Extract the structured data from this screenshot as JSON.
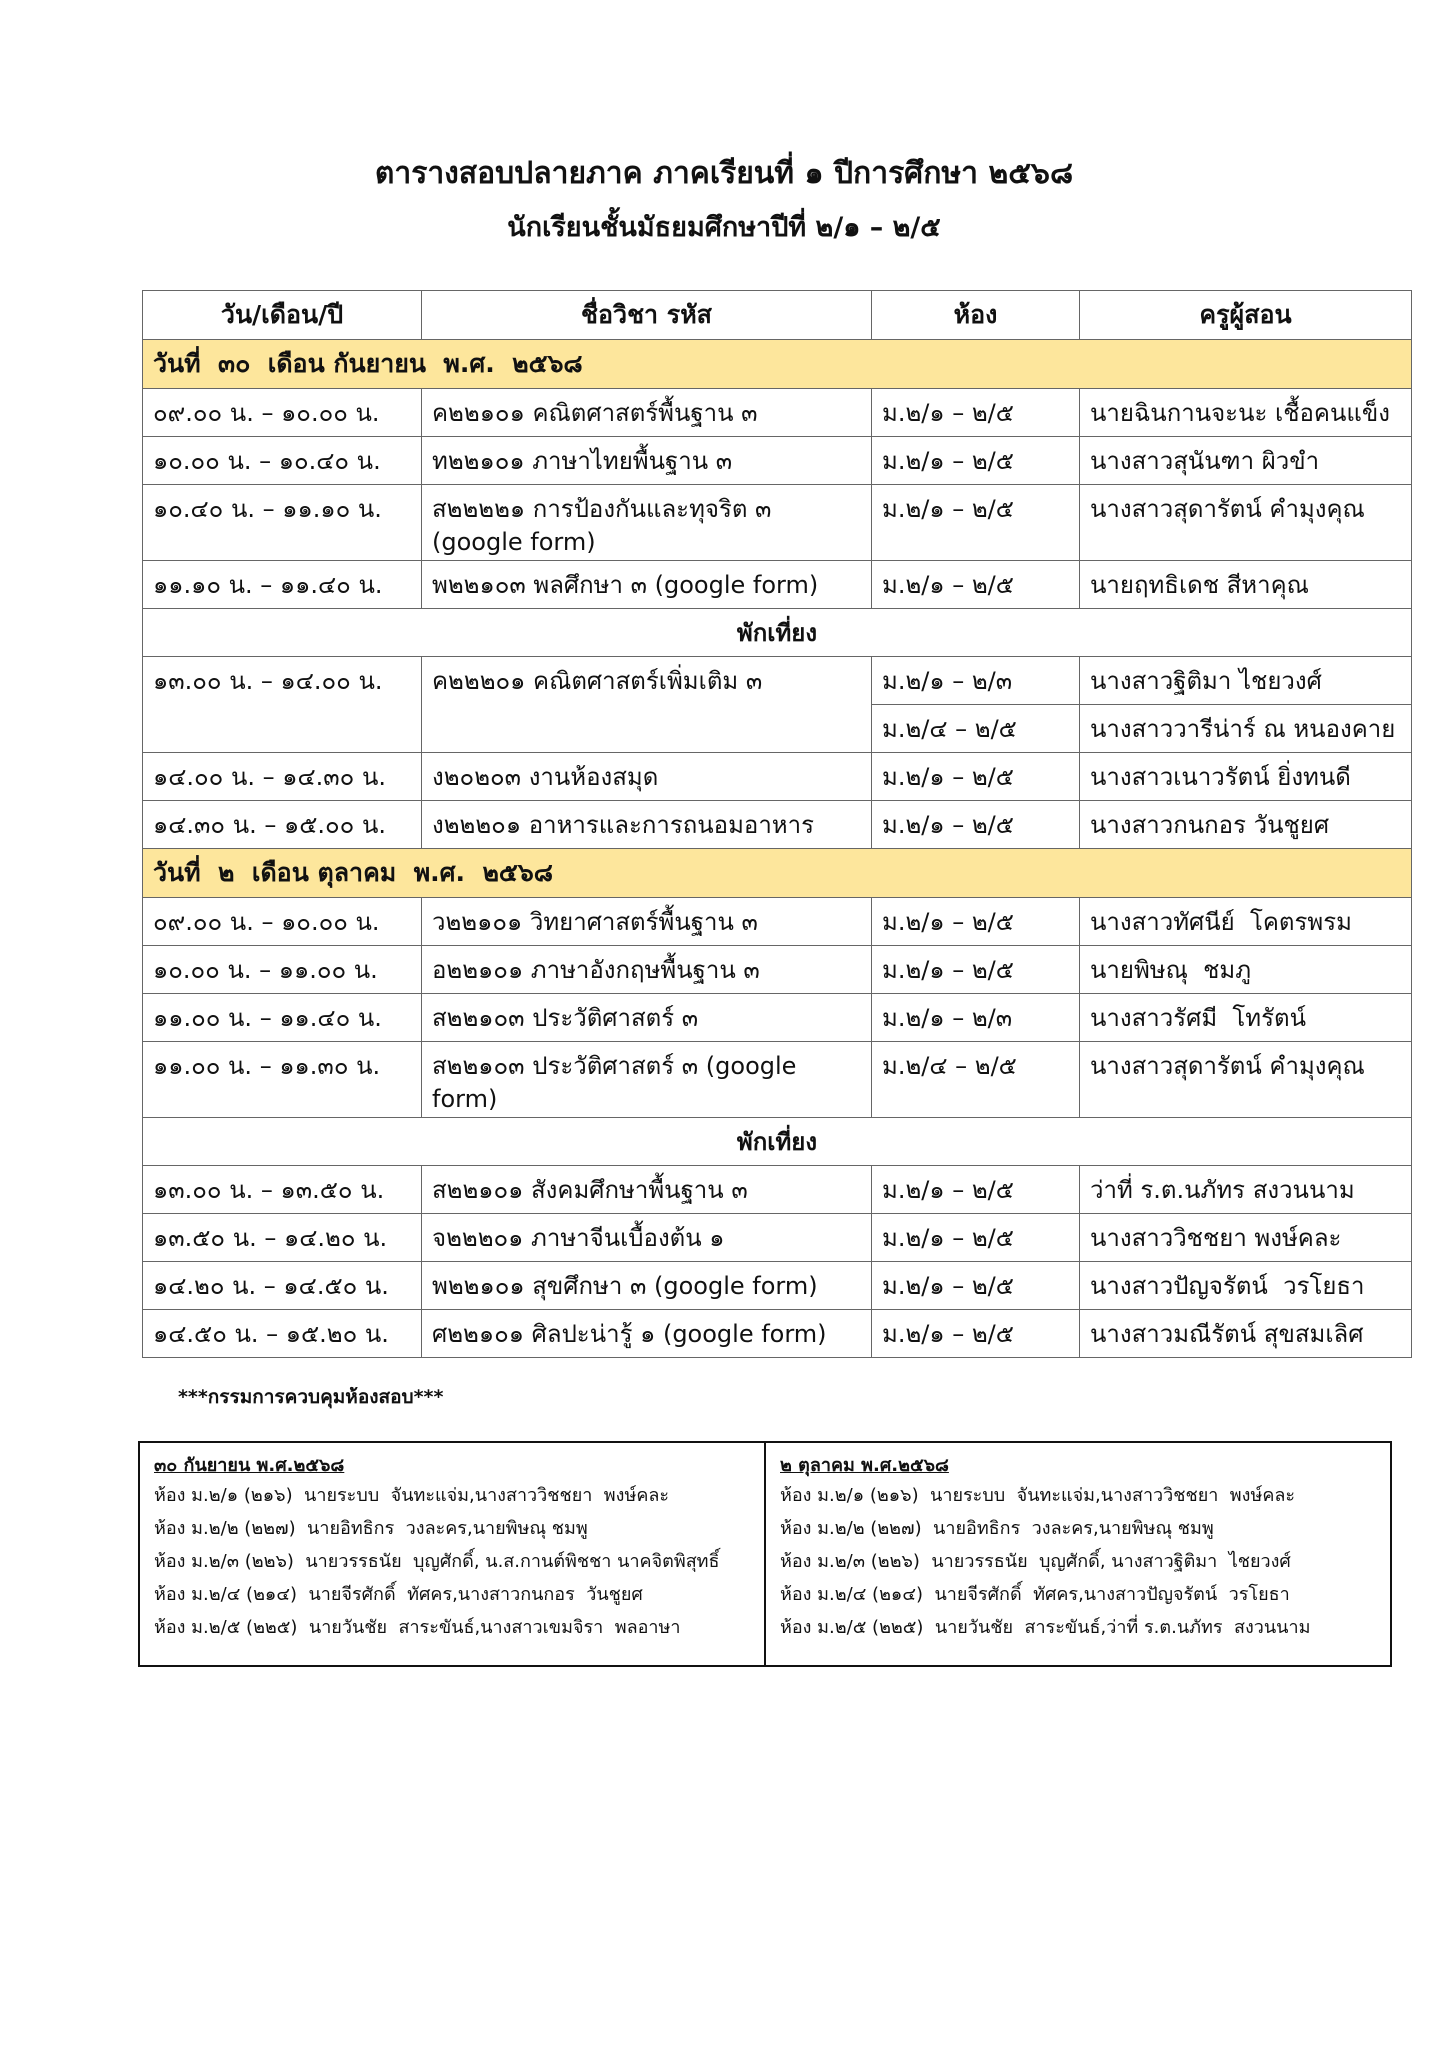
{
  "header": {
    "title": "ตารางสอบปลายภาค ภาคเรียนที่  ๑  ปีการศึกษา  ๒๕๖๘",
    "subtitle": "นักเรียนชั้นมัธยมศึกษาปีที่ ๒/๑ – ๒/๕"
  },
  "table": {
    "headers": [
      "วัน/เดือน/ปี",
      "ชื่อวิชา รหัส",
      "ห้อง",
      "ครูผู้สอน"
    ],
    "sections": [
      {
        "heading": "วันที่  ๓๐  เดือน กันยายน  พ.ศ.  ๒๕๖๘",
        "rows": [
          {
            "time": "๐๙.๐๐ น. – ๑๐.๐๐ น.",
            "subject": "ค๒๒๑๐๑ คณิตศาสตร์พื้นฐาน ๓",
            "room": "ม.๒/๑ – ๒/๕",
            "teacher": "นายฉินกานจะนะ เชื้อคนแข็ง"
          },
          {
            "time": "๑๐.๐๐ น. – ๑๐.๔๐ น.",
            "subject": "ท๒๒๑๐๑ ภาษาไทยพื้นฐาน ๓",
            "room": "ม.๒/๑ – ๒/๕",
            "teacher": "นางสาวสุนันฑา ผิวขำ"
          },
          {
            "time": "๑๐.๔๐ น. – ๑๑.๑๐ น.",
            "subject": "ส๒๒๒๒๑ การป้องกันและทุจริต ๓ (google form)",
            "room": "ม.๒/๑ – ๒/๕",
            "teacher": "นางสาวสุดารัตน์ คำมุงคุณ"
          },
          {
            "time": "๑๑.๑๐ น. – ๑๑.๔๐ น.",
            "subject": "พ๒๒๑๐๓ พลศึกษา ๓ (google form)",
            "room": "ม.๒/๑ – ๒/๕",
            "teacher": "นายฤทธิเดช สีหาคุณ"
          },
          {
            "break": "พักเที่ยง"
          },
          {
            "time": "๑๓.๐๐ น. – ๑๔.๐๐ น.",
            "subject": "ค๒๒๒๐๑ คณิตศาสตร์เพิ่มเติม ๓",
            "room": [
              "ม.๒/๑ – ๒/๓",
              "ม.๒/๔ – ๒/๕"
            ],
            "teacher": [
              "นางสาวฐิติมา ไชยวงศ์",
              "นางสาววารีน่าร์ ณ หนองคาย"
            ]
          },
          {
            "time": "๑๔.๐๐ น. – ๑๔.๓๐ น.",
            "subject": "ง๒๐๒๐๓ งานห้องสมุด",
            "room": "ม.๒/๑ – ๒/๕",
            "teacher": "นางสาวเนาวรัตน์ ยิ่งทนดี"
          },
          {
            "time": "๑๔.๓๐ น. – ๑๕.๐๐ น.",
            "subject": "ง๒๒๒๐๑ อาหารและการถนอมอาหาร",
            "room": "ม.๒/๑ – ๒/๕",
            "teacher": "นางสาวกนกอร วันชูยศ"
          }
        ]
      },
      {
        "heading": "วันที่  ๒  เดือน ตุลาคม  พ.ศ.  ๒๕๖๘",
        "rows": [
          {
            "time": "๐๙.๐๐ น. – ๑๐.๐๐ น.",
            "subject": "ว๒๒๑๐๑ วิทยาศาสตร์พื้นฐาน ๓",
            "room": "ม.๒/๑ – ๒/๕",
            "teacher": "นางสาวทัศนีย์  โคตรพรม"
          },
          {
            "time": "๑๐.๐๐ น. – ๑๑.๐๐ น.",
            "subject": "อ๒๒๑๐๑ ภาษาอังกฤษพื้นฐาน ๓",
            "room": "ม.๒/๑ – ๒/๕",
            "teacher": "นายพิษณุ  ชมภู"
          },
          {
            "time": "๑๑.๐๐ น. – ๑๑.๔๐ น.",
            "subject": "ส๒๒๑๐๓ ประวัติศาสตร์ ๓",
            "room": "ม.๒/๑ – ๒/๓",
            "teacher": "นางสาวรัศมี  โทรัตน์"
          },
          {
            "time": "๑๑.๐๐ น. – ๑๑.๓๐ น.",
            "subject": "ส๒๒๑๐๓ ประวัติศาสตร์ ๓ (google form)",
            "room": "ม.๒/๔ – ๒/๕",
            "teacher": "นางสาวสุดารัตน์ คำมุงคุณ"
          },
          {
            "break": "พักเที่ยง"
          },
          {
            "time": "๑๓.๐๐ น. – ๑๓.๕๐ น.",
            "subject": "ส๒๒๑๐๑ สังคมศึกษาพื้นฐาน ๓",
            "room": "ม.๒/๑ – ๒/๕",
            "teacher": "ว่าที่ ร.ต.นภัทร สงวนนาม"
          },
          {
            "time": "๑๓.๕๐ น. – ๑๔.๒๐ น.",
            "subject": "จ๒๒๒๐๑ ภาษาจีนเบื้องต้น ๑",
            "room": "ม.๒/๑ – ๒/๕",
            "teacher": "นางสาววิชชยา พงษ์คละ"
          },
          {
            "time": "๑๔.๒๐ น. – ๑๔.๕๐ น.",
            "subject": "พ๒๒๑๐๑ สุขศึกษา ๓ (google form)",
            "room": "ม.๒/๑ – ๒/๕",
            "teacher": "นางสาวปัญจรัตน์  วรโยธา"
          },
          {
            "time": "๑๔.๕๐ น. – ๑๕.๒๐ น.",
            "subject": "ศ๒๒๑๐๑ ศิลปะน่ารู้ ๑ (google form)",
            "room": "ม.๒/๑ – ๒/๕",
            "teacher": "นางสาวมณีรัตน์ สุขสมเลิศ"
          }
        ]
      }
    ]
  },
  "committee": {
    "note": "***กรรมการควบคุมห้องสอบ***",
    "days": [
      {
        "heading": "๓๐ กันยายน พ.ศ.๒๕๖๘",
        "lines": [
          "ห้อง ม.๒/๑ (๒๑๖)  นายระบบ  จันทะแจ่ม,นางสาววิชชยา  พงษ์คละ",
          "ห้อง ม.๒/๒ (๒๒๗)  นายอิทธิกร  วงละคร,นายพิษณุ ชมพู",
          "ห้อง ม.๒/๓ (๒๒๖)  นายวรรธนัย  บุญศักดิ์, น.ส.กานต์พิชชา นาคจิตพิสุทธิ์",
          "ห้อง ม.๒/๔ (๒๑๔)  นายจีรศักดิ์  ทัศคร,นางสาวกนกอร  วันชูยศ",
          "ห้อง ม.๒/๕ (๒๒๕)  นายวันชัย  สาระขันธ์,นางสาวเขมจิรา  พลอาษา"
        ]
      },
      {
        "heading": "๒ ตุลาคม พ.ศ.๒๕๖๘",
        "lines": [
          "ห้อง ม.๒/๑ (๒๑๖)  นายระบบ  จันทะแจ่ม,นางสาววิชชยา  พงษ์คละ",
          "ห้อง ม.๒/๒ (๒๒๗)  นายอิทธิกร  วงละคร,นายพิษณุ ชมพู",
          "ห้อง ม.๒/๓ (๒๒๖)  นายวรรธนัย  บุญศักดิ์, นางสาวฐิติมา  ไชยวงศ์",
          "ห้อง ม.๒/๔ (๒๑๔)  นายจีรศักดิ์  ทัศคร,นางสาวปัญจรัตน์  วรโยธา",
          "ห้อง ม.๒/๕ (๒๒๕)  นายวันชัย  สาระขันธ์,ว่าที่ ร.ต.นภัทร  สงวนนาม"
        ]
      }
    ]
  }
}
